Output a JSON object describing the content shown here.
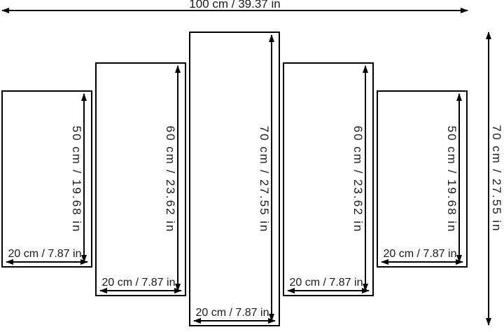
{
  "diagram": {
    "overall": {
      "width_label": "100 cm / 39.37 in",
      "height_label": "70 cm / 27.55 in"
    },
    "panels": [
      {
        "height_label": "50 cm / 19.68 in",
        "width_label": "20 cm / 7.87 in"
      },
      {
        "height_label": "60 cm / 23.62 in",
        "width_label": "20 cm / 7.87 in"
      },
      {
        "height_label": "70 cm / 27.55 in",
        "width_label": "20 cm / 7.87 in"
      },
      {
        "height_label": "60 cm / 23.62 in",
        "width_label": "20 cm / 7.87 in"
      },
      {
        "height_label": "50 cm / 19.68 in",
        "width_label": "20 cm / 7.87 in"
      }
    ],
    "icons": {
      "horizontal_arrow": "double-headed-horizontal-arrow",
      "vertical_arrow": "double-headed-vertical-arrow"
    },
    "colors": {
      "line": "#000000",
      "background": "#ffffff"
    }
  }
}
